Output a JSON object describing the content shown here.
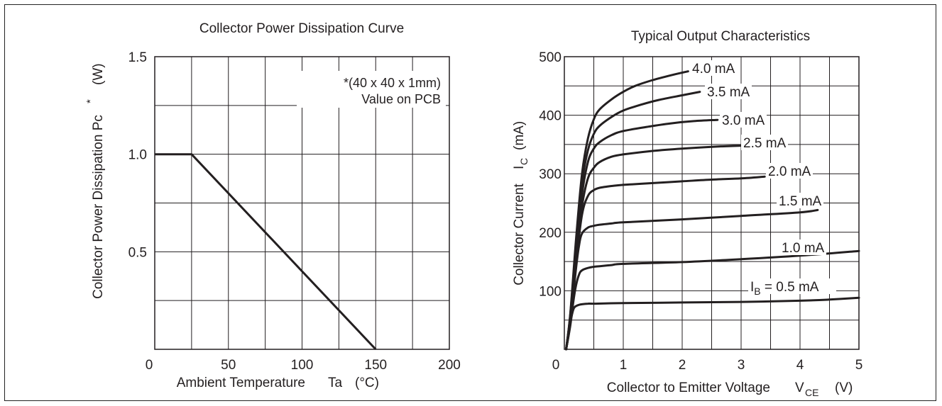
{
  "chart_data": [
    {
      "type": "line",
      "title": "Collector Power Dissipation Curve",
      "xlabel": "Ambient Temperature",
      "xlabel_symbol": "Ta",
      "xlabel_unit": "(°C)",
      "ylabel": "Collector Power Dissipation Pc",
      "ylabel_sup": "*",
      "ylabel_unit": "(W)",
      "xlim": [
        0,
        200
      ],
      "ylim": [
        0,
        1.5
      ],
      "x_ticks": [
        0,
        50,
        100,
        150,
        200
      ],
      "y_ticks": [
        0.5,
        1.0,
        1.5
      ],
      "y_tick_labels": [
        "0.5",
        "1.0",
        "1.5"
      ],
      "grid": true,
      "annotations": [
        "*(40 x 40 x 1mm)",
        "Value on PCB"
      ],
      "series": [
        {
          "x": [
            0,
            25,
            150
          ],
          "y": [
            1.0,
            1.0,
            0
          ]
        }
      ]
    },
    {
      "type": "line",
      "title": "Typical Output Characteristics",
      "xlabel": "Collector to Emitter Voltage",
      "xlabel_symbol": "V",
      "xlabel_sub": "CE",
      "xlabel_unit": "(V)",
      "ylabel": "Collector Current",
      "ylabel_symbol": "I",
      "ylabel_sub": "C",
      "ylabel_unit": "(mA)",
      "xlim": [
        0,
        5
      ],
      "ylim": [
        0,
        500
      ],
      "x_ticks": [
        0,
        1,
        2,
        3,
        4,
        5
      ],
      "y_ticks": [
        100,
        200,
        300,
        400,
        500
      ],
      "grid": true,
      "series": [
        {
          "label": "4.0 mA",
          "x": [
            0.03,
            0.1,
            0.2,
            0.3,
            0.4,
            0.5,
            0.6,
            0.8,
            1.0,
            1.2,
            1.5,
            1.8,
            2.1
          ],
          "y": [
            0,
            60,
            190,
            300,
            360,
            393,
            410,
            427,
            440,
            450,
            460,
            468,
            475
          ]
        },
        {
          "label": "3.5 mA",
          "x": [
            0.03,
            0.1,
            0.2,
            0.3,
            0.4,
            0.5,
            0.6,
            0.8,
            1.0,
            1.3,
            1.6,
            2.0,
            2.3
          ],
          "y": [
            0,
            58,
            180,
            285,
            340,
            368,
            382,
            397,
            408,
            418,
            426,
            434,
            440
          ]
        },
        {
          "label": "3.0 mA",
          "x": [
            0.03,
            0.1,
            0.2,
            0.3,
            0.4,
            0.5,
            0.6,
            0.8,
            1.0,
            1.4,
            1.8,
            2.2,
            2.6
          ],
          "y": [
            0,
            55,
            170,
            265,
            320,
            343,
            354,
            366,
            373,
            380,
            386,
            390,
            392
          ]
        },
        {
          "label": "2.5 mA",
          "x": [
            0.03,
            0.1,
            0.2,
            0.3,
            0.4,
            0.5,
            0.6,
            0.8,
            1.0,
            1.5,
            2.0,
            2.5,
            3.0
          ],
          "y": [
            0,
            50,
            160,
            245,
            292,
            310,
            320,
            329,
            333,
            339,
            343,
            346,
            348
          ]
        },
        {
          "label": "2.0 mA",
          "x": [
            0.03,
            0.1,
            0.2,
            0.3,
            0.4,
            0.5,
            0.6,
            0.8,
            1.0,
            1.5,
            2.0,
            2.5,
            3.0,
            3.4
          ],
          "y": [
            0,
            48,
            150,
            230,
            262,
            272,
            276,
            279,
            281,
            284,
            287,
            290,
            292,
            295
          ]
        },
        {
          "label": "1.5 mA",
          "x": [
            0.03,
            0.1,
            0.2,
            0.25,
            0.3,
            0.4,
            0.5,
            0.6,
            0.8,
            1.0,
            2.0,
            3.0,
            4.0,
            4.3
          ],
          "y": [
            0,
            45,
            140,
            178,
            198,
            208,
            211,
            213,
            215,
            217,
            222,
            228,
            234,
            238
          ]
        },
        {
          "label": "1.0 mA",
          "x": [
            0.03,
            0.1,
            0.15,
            0.2,
            0.25,
            0.3,
            0.4,
            0.5,
            0.6,
            0.8,
            1.0,
            2.0,
            3.0,
            4.0,
            5.0
          ],
          "y": [
            0,
            40,
            80,
            110,
            128,
            135,
            139,
            141,
            142,
            144,
            146,
            149,
            154,
            160,
            168
          ]
        },
        {
          "label": "0.5 mA",
          "x": [
            0.03,
            0.08,
            0.12,
            0.16,
            0.2,
            0.25,
            0.3,
            0.4,
            0.5,
            1.0,
            2.0,
            3.0,
            4.0,
            4.5,
            5.0
          ],
          "y": [
            0,
            30,
            55,
            70,
            74,
            76,
            77,
            78,
            78,
            79,
            80,
            81,
            83,
            85,
            88
          ]
        }
      ],
      "curve_labels": [
        {
          "text": "4.0 mA"
        },
        {
          "text": "3.5 mA"
        },
        {
          "text": "3.0 mA"
        },
        {
          "text": "2.5 mA"
        },
        {
          "text": "2.0 mA"
        },
        {
          "text": "1.5 mA"
        },
        {
          "text": "1.0 mA"
        },
        {
          "prefix": "I",
          "sub": "B",
          "text": " = 0.5 mA"
        }
      ]
    }
  ]
}
